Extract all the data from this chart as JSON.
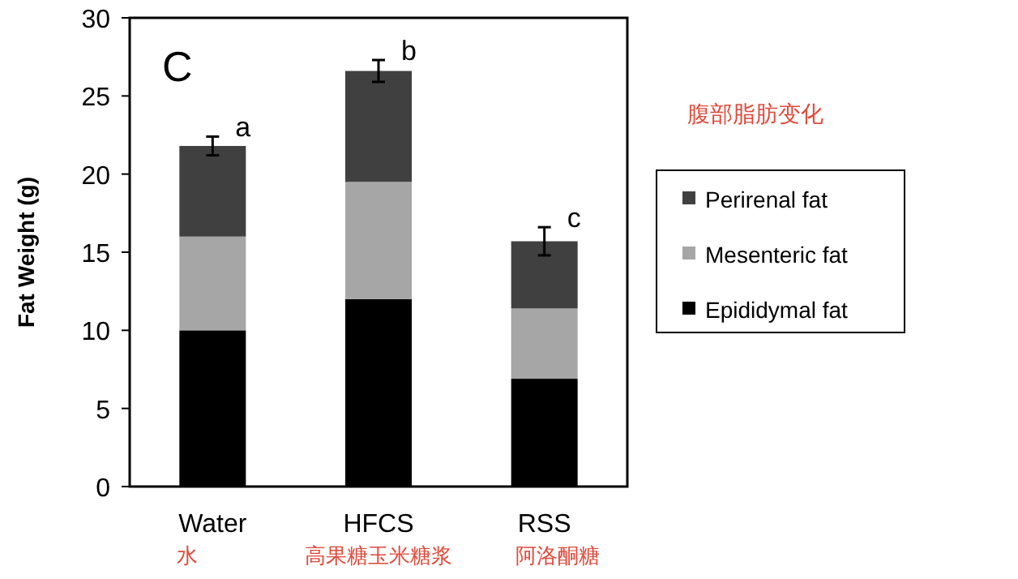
{
  "chart_data": {
    "type": "bar",
    "stacked": true,
    "ylabel": "Fat Weight (g)",
    "categories": [
      "Water",
      "HFCS",
      "RSS"
    ],
    "series": [
      {
        "name": "Epididymal fat",
        "color": "#000000",
        "values": [
          10,
          12,
          6.9
        ]
      },
      {
        "name": "Mesenteric fat",
        "color": "#a6a6a6",
        "values": [
          6,
          7.5,
          4.5
        ]
      },
      {
        "name": "Perirenal fat",
        "color": "#404040",
        "values": [
          5.8,
          7.1,
          4.3
        ],
        "errors": [
          0.6,
          0.7,
          0.9
        ]
      }
    ],
    "ylim": [
      0,
      30
    ],
    "yticks": [
      0,
      5,
      10,
      15,
      20,
      25,
      30
    ],
    "grid": false,
    "legend": "right",
    "annotations": [
      {
        "text": "a",
        "x": "Water",
        "y": 22.4
      },
      {
        "text": "b",
        "x": "HFCS",
        "y": 27.3
      },
      {
        "text": "c",
        "x": "RSS",
        "y": 16.6
      },
      "C",
      "腹部脂肪变化",
      "水",
      "高果糖玉米糖浆",
      "阿洛酮糖"
    ]
  }
}
